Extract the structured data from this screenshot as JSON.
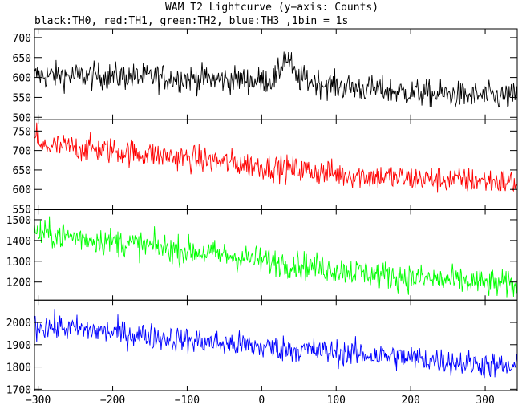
{
  "title": "WAM T2 Lightcurve (y−axis: Counts)",
  "subtitle": "black:TH0, red:TH1, green:TH2, blue:TH3 ,1bin = 1s",
  "chart_data": {
    "type": "line",
    "title": "WAM T2 Lightcurve (y−axis: Counts)",
    "subtitle": "black:TH0, red:TH1, green:TH2, blue:TH3 ,1bin = 1s",
    "xlim": [
      -305,
      343
    ],
    "x_ticks": [
      -300,
      -200,
      -100,
      0,
      100,
      200,
      300
    ],
    "x_tick_labels": [
      "−300",
      "−200",
      "−100",
      "0",
      "100",
      "200",
      "300"
    ],
    "x_step": 1,
    "grid": false,
    "panels": [
      {
        "name": "TH0",
        "color": "#000000",
        "ylim": [
          495,
          722
        ],
        "y_ticks": [
          500,
          550,
          600,
          650,
          700
        ],
        "trend_x": [
          -300,
          -200,
          -100,
          0,
          20,
          30,
          38,
          45,
          100,
          200,
          300,
          340
        ],
        "trend_y": [
          605,
          603,
          598,
          592,
          598,
          650,
          640,
          600,
          578,
          562,
          552,
          552
        ],
        "noise_amplitude": 28
      },
      {
        "name": "TH1",
        "color": "#ff0000",
        "ylim": [
          548,
          780
        ],
        "y_ticks": [
          550,
          600,
          650,
          700,
          750
        ],
        "trend_x": [
          -302,
          -297,
          -290,
          -200,
          -100,
          0,
          100,
          200,
          300,
          340
        ],
        "trend_y": [
          745,
          700,
          712,
          700,
          680,
          660,
          640,
          628,
          622,
          618
        ],
        "noise_amplitude": 28
      },
      {
        "name": "TH2",
        "color": "#00ff00",
        "ylim": [
          1113,
          1548
        ],
        "y_ticks": [
          1200,
          1300,
          1400,
          1500
        ],
        "trend_x": [
          -300,
          -200,
          -100,
          0,
          100,
          200,
          300,
          340
        ],
        "trend_y": [
          1435,
          1395,
          1350,
          1305,
          1260,
          1220,
          1195,
          1185
        ],
        "noise_amplitude": 55
      },
      {
        "name": "TH3",
        "color": "#0000ff",
        "ylim": [
          1694,
          2100
        ],
        "y_ticks": [
          1700,
          1800,
          1900,
          2000
        ],
        "trend_x": [
          -300,
          -200,
          -100,
          0,
          100,
          200,
          300,
          340
        ],
        "trend_y": [
          1985,
          1955,
          1920,
          1890,
          1865,
          1840,
          1810,
          1795
        ],
        "noise_amplitude": 48
      }
    ]
  }
}
